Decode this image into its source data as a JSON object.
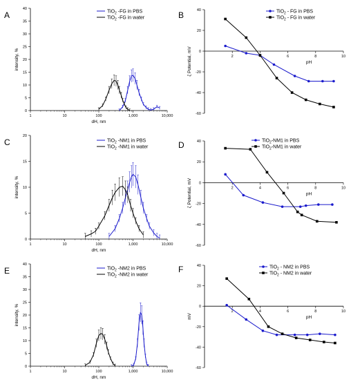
{
  "chart_data": [
    {
      "panel": "A",
      "type": "line",
      "xscale": "log",
      "xlim": [
        1,
        10000
      ],
      "ylim": [
        0,
        40
      ],
      "xticks": [
        1,
        10,
        100,
        1000,
        10000
      ],
      "xtick_labels": [
        "1",
        "10",
        "100",
        "1,000",
        "10,000"
      ],
      "yticks": [
        0,
        5,
        10,
        15,
        20,
        25,
        30,
        35,
        40
      ],
      "xlabel": "dH, nm",
      "ylabel": "intensity, %",
      "legend_position": "top-right",
      "series": [
        {
          "name": "TiO₂ -FG in PBS",
          "color": "#1a1acc",
          "marker": "none",
          "x": [
            400,
            500,
            600,
            700,
            800,
            900,
            1000,
            1150,
            1300,
            1500,
            1750,
            2000,
            2400,
            2800,
            3300,
            4000,
            5000,
            6000
          ],
          "y": [
            0,
            1.5,
            4,
            8,
            11.5,
            13.5,
            13.8,
            12.5,
            10,
            7,
            4.5,
            2.5,
            1.2,
            0.5,
            0.2,
            0.5,
            1.5,
            1
          ]
        },
        {
          "name": "TiO₂ -FG in water",
          "color": "#000000",
          "marker": "none",
          "x": [
            100,
            130,
            160,
            200,
            240,
            280,
            320,
            360,
            400,
            450,
            500,
            560,
            620,
            700,
            800
          ],
          "y": [
            0.5,
            2,
            4.5,
            8,
            10.5,
            11.8,
            11.5,
            10,
            8,
            6,
            4,
            2.5,
            1.2,
            0.5,
            0
          ]
        }
      ]
    },
    {
      "panel": "B",
      "type": "line",
      "xlim": [
        0,
        10
      ],
      "ylim": [
        -60,
        40
      ],
      "xticks": [
        2,
        4,
        6,
        8,
        10
      ],
      "yticks": [
        -60,
        -40,
        -20,
        0,
        20,
        40
      ],
      "xlabel": "pH",
      "ylabel": "ζ Potential, mV",
      "legend_position": "top-right",
      "series": [
        {
          "name": "TiO₂ - FG in PBS",
          "color": "#1a1acc",
          "marker": "circle",
          "x": [
            1.5,
            3.0,
            4.0,
            5.0,
            6.5,
            7.5,
            8.5,
            9.3
          ],
          "y": [
            5,
            -2,
            -4,
            -13,
            -24,
            -29,
            -29,
            -29
          ]
        },
        {
          "name": "TiO₂ - FG in water",
          "color": "#000000",
          "marker": "square",
          "x": [
            1.5,
            3.0,
            4.0,
            5.2,
            6.3,
            7.3,
            8.3,
            9.3
          ],
          "y": [
            31,
            13,
            -4,
            -26,
            -40,
            -47,
            -51,
            -54
          ]
        }
      ]
    },
    {
      "panel": "C",
      "type": "line",
      "xscale": "log",
      "xlim": [
        1,
        10000
      ],
      "ylim": [
        0,
        20
      ],
      "xticks": [
        1,
        10,
        100,
        1000,
        10000
      ],
      "xtick_labels": [
        "1",
        "10",
        "100",
        "1,000",
        "10,000"
      ],
      "yticks": [
        0,
        5,
        10,
        15,
        20
      ],
      "xlabel": "dH, nm",
      "ylabel": "intensity, %",
      "legend_position": "top-right",
      "series": [
        {
          "name": "TiO₂ -NM1 in PBS",
          "color": "#1a1acc",
          "marker": "none",
          "x": [
            200,
            300,
            400,
            500,
            600,
            700,
            800,
            900,
            1000,
            1200,
            1400,
            1700,
            2000,
            2500,
            3000,
            4000,
            5000,
            6000
          ],
          "y": [
            0.5,
            2,
            4,
            6,
            8,
            9.5,
            11,
            12,
            12.5,
            12,
            10.5,
            8,
            6,
            4,
            2.5,
            1.2,
            0.5,
            0.2
          ]
        },
        {
          "name": "TiO₂ -NM1 in water",
          "color": "#000000",
          "marker": "none",
          "x": [
            40,
            60,
            80,
            100,
            150,
            200,
            250,
            300,
            400,
            500,
            600,
            700,
            850,
            1000,
            1200,
            1500,
            2000
          ],
          "y": [
            0.5,
            1,
            1.5,
            2.5,
            4.5,
            6.5,
            8,
            9,
            10,
            10.2,
            9.5,
            8.5,
            6.5,
            5,
            3.5,
            2,
            0.8
          ]
        }
      ]
    },
    {
      "panel": "D",
      "type": "line",
      "xlim": [
        0,
        10
      ],
      "ylim": [
        -60,
        40
      ],
      "xticks": [
        2,
        4,
        6,
        8,
        10
      ],
      "yticks": [
        -60,
        -40,
        -20,
        0,
        20,
        40
      ],
      "xlabel": "pH",
      "ylabel": "ζ Potential, mV",
      "legend_position": "top-right",
      "series": [
        {
          "name": "TiO₂-NM1 in PBS",
          "color": "#1a1acc",
          "marker": "circle",
          "x": [
            1.5,
            2.8,
            4.2,
            5.6,
            6.9,
            7.3,
            8.2,
            9.2
          ],
          "y": [
            8,
            -12,
            -19,
            -23,
            -23,
            -22,
            -21,
            -21
          ]
        },
        {
          "name": "TiO₂-NM1 in water",
          "color": "#000000",
          "marker": "square",
          "x": [
            1.5,
            3.3,
            4.5,
            5.7,
            6.7,
            7.0,
            8.1,
            9.5
          ],
          "y": [
            33,
            32,
            10,
            -10,
            -28,
            -31,
            -37,
            -38
          ]
        }
      ]
    },
    {
      "panel": "E",
      "type": "line",
      "xscale": "log",
      "xlim": [
        1,
        10000
      ],
      "ylim": [
        0,
        40
      ],
      "xticks": [
        1,
        10,
        100,
        1000,
        10000
      ],
      "xtick_labels": [
        "1",
        "10",
        "100",
        "1,000",
        "10,000"
      ],
      "yticks": [
        0,
        5,
        10,
        15,
        20,
        25,
        30,
        35,
        40
      ],
      "xlabel": "dH, nm",
      "ylabel": "intensity, %",
      "legend_position": "top-right",
      "series": [
        {
          "name": "TiO₂ -NM2 in PBS",
          "color": "#1a1acc",
          "marker": "none",
          "x": [
            900,
            1050,
            1200,
            1350,
            1500,
            1650,
            1800,
            1950,
            2100,
            2300,
            2500,
            2800
          ],
          "y": [
            0,
            0.5,
            3,
            9,
            17,
            21,
            20,
            15,
            9,
            4,
            1,
            0
          ]
        },
        {
          "name": "TiO₂ -NM2 in water",
          "color": "#000000",
          "marker": "none",
          "x": [
            40,
            55,
            70,
            85,
            100,
            115,
            130,
            150,
            170,
            190,
            220,
            260,
            300
          ],
          "y": [
            0.3,
            1.5,
            4.5,
            9,
            12,
            12.8,
            12.5,
            10.5,
            8,
            5.5,
            3,
            1,
            0.2
          ]
        }
      ]
    },
    {
      "panel": "F",
      "type": "line",
      "xlim": [
        0,
        10
      ],
      "ylim": [
        -60,
        40
      ],
      "xticks": [
        2,
        4,
        6,
        8,
        10
      ],
      "yticks": [
        -60,
        -40,
        -20,
        0,
        20,
        40
      ],
      "xlabel": "pH",
      "ylabel": "mV",
      "legend_position": "top-right",
      "series": [
        {
          "name": "TiO₂ - NM2 in PBS",
          "color": "#1a1acc",
          "marker": "circle",
          "x": [
            1.6,
            3.0,
            4.2,
            5.2,
            6.5,
            7.4,
            8.3,
            9.4
          ],
          "y": [
            1,
            -13,
            -24,
            -28,
            -28,
            -28,
            -27,
            -28
          ]
        },
        {
          "name": "TiO₂ - NM2 in water",
          "color": "#000000",
          "marker": "square",
          "x": [
            1.6,
            3.2,
            4.6,
            5.6,
            6.6,
            7.6,
            8.6,
            9.4
          ],
          "y": [
            27,
            7,
            -20,
            -27,
            -31,
            -33,
            -35,
            -36
          ]
        }
      ]
    }
  ]
}
